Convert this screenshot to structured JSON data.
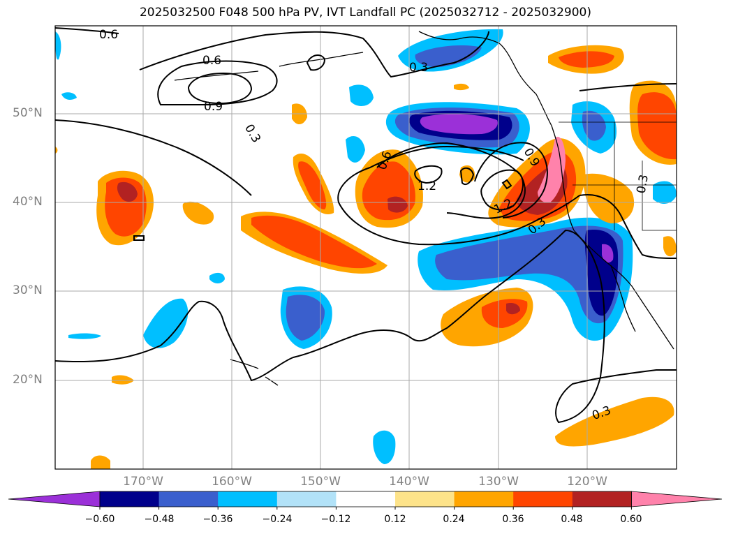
{
  "title": "2025032500 F048 500 hPa PV, IVT Landfall PC (2025032712 - 2025032900)",
  "map": {
    "lat_labels": [
      "50°N",
      "40°N",
      "30°N",
      "20°N"
    ],
    "lon_labels": [
      "170°W",
      "160°W",
      "150°W",
      "140°W",
      "130°W",
      "120°W"
    ],
    "contour_labels": [
      "0.6",
      "0.6",
      "0.9",
      "0.3",
      "0.3",
      "0.6",
      "1.2",
      "0.9",
      "1.2",
      "0.3",
      "0.3",
      "0.3"
    ],
    "colors": {
      "neg_extreme": "#9b30d8",
      "neg_48": "#00008b",
      "neg_36": "#3a5fcd",
      "neg_24": "#00bfff",
      "neg_12": "#b2e2f8",
      "pos_12": "#fde38a",
      "pos_24": "#ffa500",
      "pos_36": "#ff4500",
      "pos_48": "#b22222",
      "pos_60": "#ff82ab"
    }
  },
  "colorbar": {
    "ticks": [
      "−0.60",
      "−0.48",
      "−0.36",
      "−0.24",
      "−0.12",
      "0.12",
      "0.24",
      "0.36",
      "0.48",
      "0.60"
    ],
    "colors": [
      "#9b30d8",
      "#00008b",
      "#3a5fcd",
      "#00bfff",
      "#b2e2f8",
      "#ffffff",
      "#fde38a",
      "#ffa500",
      "#ff4500",
      "#b22222",
      "#ff82ab"
    ]
  }
}
